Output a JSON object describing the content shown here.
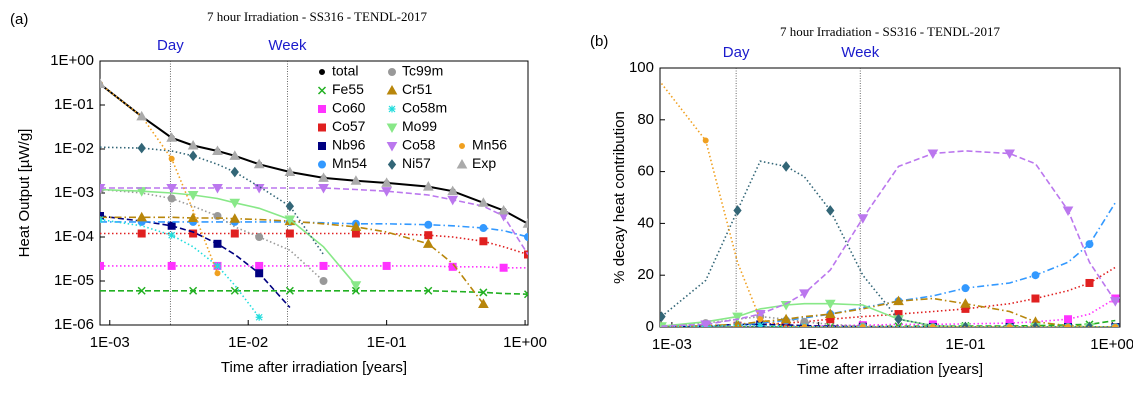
{
  "chart_data": [
    {
      "type": "line",
      "title": "7 hour Irradiation - SS316 - TENDL-2017",
      "panel_label": "(a)",
      "x_label": "Time after irradiation [years]",
      "y_label": "Heat Output [µW/g]",
      "xlog": true,
      "ylog": true,
      "legend": "top-right",
      "xlim": [
        0.00085,
        1.05
      ],
      "ylim": [
        1e-06,
        1
      ],
      "xticks": [
        {
          "value": 0.001,
          "label": "1E-03"
        },
        {
          "value": 0.01,
          "label": "1E-02"
        },
        {
          "value": 0.1,
          "label": "1E-01"
        },
        {
          "value": 1,
          "label": "1E+00"
        }
      ],
      "yticks": [
        {
          "value": 1e-06,
          "label": "1E-06"
        },
        {
          "value": 1e-05,
          "label": "1E-05"
        },
        {
          "value": 0.0001,
          "label": "1E-04"
        },
        {
          "value": 0.001,
          "label": "1E-03"
        },
        {
          "value": 0.01,
          "label": "1E-02"
        },
        {
          "value": 0.1,
          "label": "1E-01"
        },
        {
          "value": 1,
          "label": "1E+00"
        }
      ],
      "vlines": [
        {
          "value": 0.00274,
          "label": "Day"
        },
        {
          "value": 0.0192,
          "label": "Week"
        }
      ],
      "x": [
        0.00085,
        0.0017,
        0.0028,
        0.004,
        0.006,
        0.008,
        0.012,
        0.02,
        0.035,
        0.06,
        0.1,
        0.2,
        0.3,
        0.5,
        0.7,
        1.05
      ],
      "series": [
        {
          "name": "total",
          "color": "#000000",
          "dash": "solid",
          "marker": "dot",
          "values": [
            0.3,
            0.055,
            0.018,
            0.012,
            0.009,
            0.007,
            0.0045,
            0.003,
            0.0022,
            0.0019,
            0.0017,
            0.0014,
            0.0011,
            0.0006,
            0.0004,
            0.0002
          ]
        },
        {
          "name": "Fe55",
          "color": "#22b022",
          "dash": "dashed",
          "marker": "x",
          "values": [
            6e-06,
            6e-06,
            6e-06,
            6e-06,
            6e-06,
            6e-06,
            6e-06,
            6e-06,
            6e-06,
            6e-06,
            6e-06,
            6e-06,
            5.8e-06,
            5.5e-06,
            5.2e-06,
            5e-06
          ]
        },
        {
          "name": "Co60",
          "color": "#ff33ff",
          "dash": "dotted",
          "marker": "square",
          "values": [
            2.2e-05,
            2.2e-05,
            2.2e-05,
            2.2e-05,
            2.2e-05,
            2.2e-05,
            2.2e-05,
            2.2e-05,
            2.2e-05,
            2.2e-05,
            2.2e-05,
            2.2e-05,
            2.1e-05,
            2.1e-05,
            2e-05,
            2e-05
          ]
        },
        {
          "name": "Co57",
          "color": "#e02020",
          "dash": "dotted",
          "marker": "square",
          "values": [
            0.00012,
            0.00012,
            0.00012,
            0.00012,
            0.00012,
            0.00012,
            0.00012,
            0.00012,
            0.00012,
            0.00012,
            0.00012,
            0.00011,
            0.0001,
            8e-05,
            6e-05,
            4e-05
          ]
        },
        {
          "name": "Nb96",
          "color": "#000080",
          "dash": "dashed",
          "marker": "square",
          "values": [
            0.0003,
            0.00023,
            0.00018,
            0.00013,
            7e-05,
            4e-05,
            1.5e-05,
            2.5e-06,
            null,
            null,
            null,
            null,
            null,
            null,
            null,
            null
          ]
        },
        {
          "name": "Mn54",
          "color": "#3399ff",
          "dash": "dashdot",
          "marker": "circle",
          "values": [
            0.00022,
            0.00022,
            0.00022,
            0.00022,
            0.00022,
            0.00022,
            0.00022,
            0.00022,
            0.00021,
            0.0002,
            0.0002,
            0.00019,
            0.00018,
            0.00016,
            0.00014,
            0.0001
          ]
        },
        {
          "name": "Tc99m",
          "color": "#999999",
          "dash": "dotted",
          "marker": "circle",
          "values": [
            0.0012,
            0.001,
            0.00075,
            0.0005,
            0.0003,
            0.00017,
            0.0001,
            5e-05,
            1e-05,
            null,
            null,
            null,
            null,
            null,
            null,
            null
          ]
        },
        {
          "name": "Cr51",
          "color": "#b8860b",
          "dash": "dashdot",
          "marker": "triangle",
          "values": [
            0.00028,
            0.00028,
            0.00028,
            0.00027,
            0.00027,
            0.00026,
            0.00025,
            0.00023,
            0.0002,
            0.00017,
            0.00013,
            7e-05,
            2.5e-05,
            3e-06,
            null,
            null
          ]
        },
        {
          "name": "Co58m",
          "color": "#22dddd",
          "dash": "dotted",
          "marker": "star",
          "values": [
            0.00025,
            0.00018,
            0.00011,
            6e-05,
            2.2e-05,
            8e-06,
            1.5e-06,
            null,
            null,
            null,
            null,
            null,
            null,
            null,
            null,
            null
          ]
        },
        {
          "name": "Mo99",
          "color": "#88e888",
          "dash": "solid",
          "marker": "triangle-down",
          "values": [
            0.0012,
            0.0011,
            0.001,
            0.0009,
            0.00075,
            0.0006,
            0.00045,
            0.00025,
            6e-05,
            8e-06,
            null,
            null,
            null,
            null,
            null,
            null
          ]
        },
        {
          "name": "Co58",
          "color": "#bb77ee",
          "dash": "dashed",
          "marker": "triangle-down",
          "values": [
            0.0013,
            0.0013,
            0.0013,
            0.0013,
            0.0013,
            0.0013,
            0.0013,
            0.0013,
            0.0013,
            0.0012,
            0.0011,
            0.0009,
            0.0007,
            0.0005,
            0.0003,
            4e-05
          ]
        },
        {
          "name": "Ni57",
          "color": "#336677",
          "dash": "dotted",
          "marker": "diamond",
          "values": [
            0.011,
            0.0105,
            0.009,
            0.007,
            0.0045,
            0.003,
            0.0014,
            0.0005,
            4e-05,
            null,
            null,
            null,
            null,
            null,
            null,
            null
          ]
        },
        {
          "name": "Mn56",
          "color": "#f0a020",
          "dash": "dotted",
          "marker": "dot",
          "values": [
            0.3,
            0.055,
            0.006,
            0.0004,
            1.5e-05,
            null,
            null,
            null,
            null,
            null,
            null,
            null,
            null,
            null,
            null,
            null
          ]
        },
        {
          "name": "Exp",
          "color": "#aaaaaa",
          "dash": "none",
          "marker": "triangle",
          "values": [
            0.3,
            0.055,
            0.018,
            0.012,
            0.009,
            0.007,
            0.0045,
            0.003,
            0.0022,
            0.0019,
            0.0017,
            0.0014,
            0.0011,
            0.0006,
            0.0004,
            0.0002
          ]
        }
      ]
    },
    {
      "type": "line",
      "title": "7 hour Irradiation - SS316 - TENDL-2017",
      "panel_label": "(b)",
      "x_label": "Time after irradiation [years]",
      "y_label": "% decay heat contribution",
      "xlog": true,
      "ylog": false,
      "xlim": [
        0.00083,
        1.13
      ],
      "ylim": [
        0,
        100
      ],
      "xticks": [
        {
          "value": 0.001,
          "label": "1E-03"
        },
        {
          "value": 0.01,
          "label": "1E-02"
        },
        {
          "value": 0.1,
          "label": "1E-01"
        },
        {
          "value": 1,
          "label": "1E+00"
        }
      ],
      "yticks": [
        0,
        20,
        40,
        60,
        80,
        100
      ],
      "vlines": [
        {
          "value": 0.00274,
          "label": "Day"
        },
        {
          "value": 0.0192,
          "label": "Week"
        }
      ],
      "x": [
        0.00085,
        0.0017,
        0.0028,
        0.004,
        0.006,
        0.008,
        0.012,
        0.02,
        0.035,
        0.06,
        0.1,
        0.2,
        0.3,
        0.5,
        0.7,
        1.05
      ],
      "series": [
        {
          "color": "#22b022",
          "dash": "dashed",
          "marker": "x",
          "values": [
            0,
            0,
            0,
            0.1,
            0.1,
            0.1,
            0.1,
            0.2,
            0.3,
            0.3,
            0.4,
            0.4,
            0.5,
            0.8,
            1,
            2.5
          ]
        },
        {
          "color": "#ff33ff",
          "dash": "dotted",
          "marker": "square",
          "values": [
            0,
            0,
            0.1,
            0.2,
            0.3,
            0.4,
            0.5,
            0.7,
            1,
            1,
            1.2,
            1.5,
            2,
            3,
            5,
            11
          ]
        },
        {
          "color": "#e02020",
          "dash": "dotted",
          "marker": "square",
          "values": [
            0.05,
            0.2,
            0.5,
            1,
            1.5,
            2,
            3,
            4,
            5,
            6,
            7,
            9,
            11,
            14,
            17,
            23
          ]
        },
        {
          "color": "#000080",
          "dash": "dashed",
          "marker": "square",
          "values": [
            0.1,
            0.4,
            1,
            1,
            0.8,
            0.5,
            0.3,
            0.1,
            0,
            0,
            0,
            0,
            0,
            0,
            0,
            0
          ]
        },
        {
          "color": "#3399ff",
          "dash": "dashdot",
          "marker": "circle",
          "values": [
            0.1,
            0.3,
            0.8,
            1.5,
            2.5,
            3.5,
            5,
            7.5,
            10,
            12,
            15,
            17,
            20,
            25,
            32,
            48
          ]
        },
        {
          "color": "#999999",
          "dash": "dotted",
          "marker": "circle",
          "values": [
            0.4,
            1.5,
            3,
            4,
            3,
            2,
            1,
            0.3,
            0,
            0,
            0,
            0,
            0,
            0,
            0,
            0
          ]
        },
        {
          "color": "#b8860b",
          "dash": "dashdot",
          "marker": "triangle",
          "values": [
            0.1,
            0.5,
            1,
            2,
            3,
            4,
            5,
            7,
            10,
            11,
            9,
            6,
            2,
            0.5,
            0,
            0
          ]
        },
        {
          "color": "#22dddd",
          "dash": "dotted",
          "marker": "star",
          "values": [
            0.1,
            0.3,
            0.6,
            0.5,
            0.2,
            0.1,
            0,
            0,
            0,
            0,
            0,
            0,
            0,
            0,
            0,
            0
          ]
        },
        {
          "color": "#88e888",
          "dash": "solid",
          "marker": "triangle-down",
          "values": [
            0.3,
            2,
            4,
            7,
            8.5,
            9,
            9,
            8.5,
            3,
            0.5,
            0,
            0,
            0,
            0,
            0,
            0
          ]
        },
        {
          "color": "#bb77ee",
          "dash": "dashed",
          "marker": "triangle-down",
          "values": [
            0.3,
            1,
            3,
            5,
            9,
            13,
            22,
            42,
            62,
            67,
            68,
            67,
            63,
            45,
            25,
            10
          ]
        },
        {
          "color": "#336677",
          "dash": "dotted",
          "marker": "diamond",
          "values": [
            4,
            18,
            45,
            64,
            62,
            58,
            45,
            20,
            3,
            0.5,
            0,
            0,
            0,
            0,
            0,
            0
          ]
        },
        {
          "color": "#f0a020",
          "dash": "dotted",
          "marker": "dot",
          "values": [
            94,
            72,
            25,
            3,
            0.2,
            0,
            0,
            0,
            0,
            0,
            0,
            0,
            0,
            0,
            0,
            0
          ]
        }
      ]
    }
  ]
}
